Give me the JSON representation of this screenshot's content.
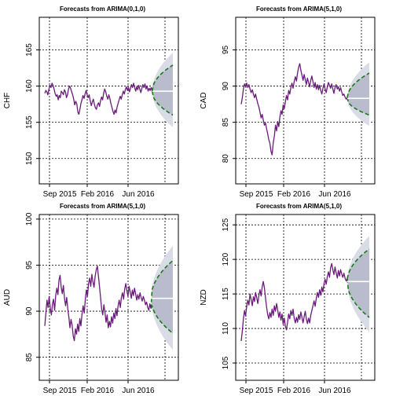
{
  "colors": {
    "series": "#6a1b7a",
    "forecast_band_outer": "#d9dce6",
    "forecast_band_inner": "#b8bccd",
    "forecast_mean": "#ffffff",
    "bound_line": "#1a7a1a",
    "grid": "#000000"
  },
  "chart_data": [
    {
      "type": "line",
      "title": "Forecasts from ARIMA(0,1,0)",
      "ylabel": "CHF",
      "xlabel": "",
      "x_tick_labels": [
        "Sep 2015",
        "Feb 2016",
        "Jun 2016"
      ],
      "y_ticks": [
        150,
        155,
        160,
        165
      ],
      "ylim": [
        146.5,
        169.5
      ],
      "grid": true,
      "series": [
        {
          "values": [
            159.0,
            159.4,
            159.2,
            158.8,
            159.6,
            160.1,
            159.8,
            160.4,
            160.1,
            159.6,
            159.0,
            158.6,
            158.8,
            158.1,
            158.7,
            158.4,
            159.3,
            159.1,
            158.8,
            159.5,
            159.2,
            158.4,
            158.8,
            159.6,
            160.0,
            159.7,
            159.2,
            158.8,
            158.2,
            157.4,
            157.9,
            157.5,
            156.4,
            156.1,
            156.8,
            157.6,
            158.1,
            158.7,
            158.3,
            158.9,
            159.4,
            158.8,
            158.4,
            158.8,
            158.0,
            157.3,
            157.8,
            158.2,
            157.5,
            157.0,
            156.8,
            157.4,
            157.7,
            157.2,
            158.0,
            158.5,
            158.1,
            159.0,
            159.6,
            159.2,
            158.6,
            158.2,
            158.8,
            158.3,
            157.6,
            157.1,
            156.5,
            156.1,
            156.7,
            156.3,
            157.1,
            157.6,
            158.1,
            158.6,
            158.2,
            158.8,
            159.3,
            158.9,
            159.5,
            159.9,
            159.4,
            159.8,
            159.2,
            159.7,
            160.2,
            159.8,
            160.4,
            159.8,
            159.3,
            159.9,
            159.5,
            160.1,
            159.6,
            159.1,
            159.7,
            160.2,
            159.8,
            160.3,
            159.6,
            160.0,
            159.3,
            159.7,
            159.4,
            159.8,
            159.3
          ]
        }
      ],
      "forecast": {
        "steps": 20,
        "mean": 159.3,
        "lo80_end": 156.0,
        "hi80_end": 162.9,
        "lo95_end": 154.3,
        "hi95_end": 164.6
      }
    },
    {
      "type": "line",
      "title": "Forecasts from ARIMA(5,1,0)",
      "ylabel": "CAD",
      "xlabel": "",
      "x_tick_labels": [
        "Sep 2015",
        "Feb 2016",
        "Jun 2016"
      ],
      "y_ticks": [
        80,
        85,
        90,
        95
      ],
      "ylim": [
        76.5,
        99.5
      ],
      "grid": true,
      "series": [
        {
          "values": [
            87.5,
            88.4,
            89.6,
            90.3,
            89.9,
            90.4,
            89.8,
            90.2,
            89.6,
            89.1,
            89.5,
            88.9,
            88.4,
            88.9,
            88.2,
            87.6,
            87.1,
            86.4,
            85.6,
            86.1,
            85.3,
            84.6,
            84.9,
            84.1,
            83.4,
            82.6,
            82.1,
            81.0,
            80.5,
            82.2,
            83.1,
            84.6,
            83.8,
            85.1,
            84.4,
            85.7,
            86.6,
            86.1,
            87.4,
            86.9,
            87.8,
            88.7,
            88.1,
            89.4,
            88.9,
            89.8,
            90.4,
            89.7,
            90.6,
            91.3,
            90.7,
            91.8,
            92.6,
            93.1,
            92.2,
            91.5,
            90.8,
            91.6,
            90.9,
            90.2,
            91.1,
            90.5,
            89.9,
            90.8,
            91.4,
            90.6,
            89.8,
            90.5,
            89.6,
            90.2,
            89.5,
            90.1,
            89.4,
            88.9,
            89.7,
            90.3,
            89.6,
            89.1,
            89.9,
            90.5,
            90.1,
            89.7,
            90.3,
            89.6,
            89.0,
            89.8,
            90.2,
            89.6,
            89.9,
            89.3,
            89.8,
            89.2,
            88.7,
            88.9,
            88.5,
            88.2,
            88.4
          ]
        }
      ],
      "forecast": {
        "steps": 20,
        "mean": 88.3,
        "lo80_end": 86.0,
        "hi80_end": 91.8,
        "lo95_end": 84.5,
        "hi95_end": 93.3
      }
    },
    {
      "type": "line",
      "title": "Forecasts from ARIMA(5,1,0)",
      "ylabel": "AUD",
      "xlabel": "",
      "x_tick_labels": [
        "Sep 2015",
        "Feb 2016",
        "Jun 2016"
      ],
      "y_ticks": [
        85,
        90,
        95,
        100
      ],
      "ylim": [
        82.5,
        100.5
      ],
      "grid": true,
      "series": [
        {
          "values": [
            88.4,
            89.8,
            91.2,
            90.4,
            91.6,
            90.3,
            89.6,
            90.8,
            91.3,
            90.1,
            91.7,
            92.5,
            91.8,
            93.4,
            93.9,
            92.6,
            91.9,
            92.8,
            91.4,
            90.6,
            91.5,
            90.2,
            89.4,
            88.2,
            89.1,
            88.5,
            87.3,
            86.8,
            88.1,
            87.5,
            88.6,
            87.8,
            89.2,
            88.4,
            89.7,
            90.6,
            89.8,
            91.2,
            92.3,
            91.6,
            93.0,
            93.6,
            92.7,
            94.0,
            93.2,
            92.6,
            93.8,
            94.5,
            94.9,
            93.8,
            92.6,
            91.4,
            90.2,
            89.6,
            90.7,
            89.9,
            88.8,
            89.6,
            88.2,
            88.9,
            88.3,
            89.4,
            88.7,
            89.8,
            89.2,
            90.3,
            89.5,
            90.6,
            91.2,
            90.4,
            91.5,
            92.0,
            91.3,
            92.4,
            93.0,
            92.2,
            91.6,
            92.7,
            92.1,
            91.4,
            92.3,
            91.7,
            92.5,
            91.9,
            91.2,
            91.8,
            91.3,
            92.0,
            91.5,
            91.1,
            91.6,
            91.2,
            90.7,
            91.0,
            90.4,
            90.1,
            90.8,
            90.3
          ]
        }
      ],
      "forecast": {
        "steps": 20,
        "mean": 91.4,
        "lo80_end": 87.6,
        "hi80_end": 95.5,
        "lo95_end": 85.8,
        "hi95_end": 97.1
      }
    },
    {
      "type": "line",
      "title": "Forecasts from ARIMA(5,1,0)",
      "ylabel": "NZD",
      "xlabel": "",
      "x_tick_labels": [
        "Sep 2015",
        "Feb 2016",
        "Jun 2016"
      ],
      "y_ticks": [
        105,
        110,
        115,
        120,
        125
      ],
      "ylim": [
        102.5,
        126.5
      ],
      "grid": true,
      "series": [
        {
          "values": [
            108.2,
            109.6,
            111.4,
            112.6,
            111.8,
            113.2,
            114.1,
            113.4,
            115.0,
            114.2,
            113.3,
            114.6,
            113.9,
            115.2,
            114.5,
            113.6,
            114.8,
            115.6,
            114.7,
            116.0,
            116.8,
            115.9,
            114.4,
            113.1,
            112.0,
            111.4,
            112.3,
            111.6,
            112.8,
            111.9,
            113.3,
            112.5,
            113.6,
            112.7,
            111.6,
            112.4,
            111.2,
            112.1,
            110.6,
            111.5,
            110.3,
            109.8,
            110.9,
            112.1,
            111.4,
            112.6,
            111.9,
            112.8,
            111.5,
            110.8,
            111.6,
            110.9,
            112.0,
            111.3,
            112.4,
            111.6,
            110.8,
            111.7,
            112.5,
            111.4,
            110.7,
            111.5,
            110.8,
            111.9,
            112.6,
            113.3,
            114.0,
            113.2,
            114.4,
            115.2,
            114.5,
            115.6,
            114.8,
            116.0,
            115.3,
            116.5,
            117.1,
            116.4,
            117.5,
            118.2,
            117.4,
            118.8,
            119.4,
            118.5,
            117.8,
            118.9,
            118.1,
            117.3,
            118.4,
            117.6,
            118.5,
            117.9,
            117.4,
            118.0,
            117.3,
            116.9,
            117.2
          ]
        }
      ],
      "forecast": {
        "steps": 20,
        "mean": 116.8,
        "lo80_end": 111.6,
        "hi80_end": 121.5,
        "lo95_end": 109.5,
        "hi95_end": 123.4
      }
    }
  ]
}
